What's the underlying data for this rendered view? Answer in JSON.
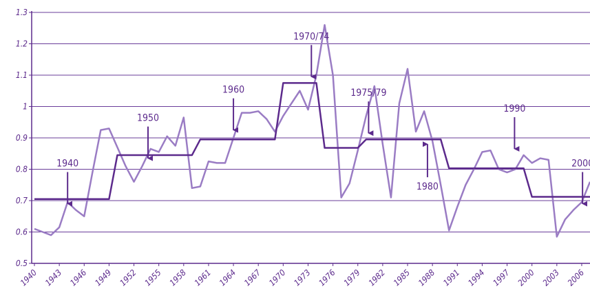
{
  "chart_data": {
    "type": "line",
    "x": [
      1940,
      1941,
      1942,
      1943,
      1944,
      1945,
      1946,
      1947,
      1948,
      1949,
      1950,
      1951,
      1952,
      1953,
      1954,
      1955,
      1956,
      1957,
      1958,
      1959,
      1960,
      1961,
      1962,
      1963,
      1964,
      1965,
      1966,
      1967,
      1968,
      1969,
      1970,
      1971,
      1972,
      1973,
      1974,
      1975,
      1976,
      1977,
      1978,
      1979,
      1980,
      1981,
      1982,
      1983,
      1984,
      1985,
      1986,
      1987,
      1988,
      1989,
      1990,
      1991,
      1992,
      1993,
      1994,
      1995,
      1996,
      1997,
      1998,
      1999,
      2000,
      2001,
      2002,
      2003,
      2004,
      2005,
      2006,
      2007
    ],
    "series": [
      {
        "color": "#9a7cc4",
        "values": [
          0.61,
          0.6,
          0.59,
          0.615,
          0.695,
          0.67,
          0.65,
          0.79,
          0.925,
          0.93,
          0.87,
          0.81,
          0.76,
          0.81,
          0.865,
          0.855,
          0.905,
          0.875,
          0.965,
          0.74,
          0.745,
          0.825,
          0.82,
          0.82,
          0.9,
          0.98,
          0.98,
          0.985,
          0.96,
          0.92,
          0.97,
          1.01,
          1.05,
          0.99,
          1.1,
          1.26,
          1.1,
          0.71,
          0.755,
          0.86,
          0.97,
          1.065,
          0.88,
          0.71,
          1.01,
          1.12,
          0.92,
          0.985,
          0.89,
          0.75,
          0.605,
          0.68,
          0.75,
          0.8,
          0.855,
          0.86,
          0.8,
          0.79,
          0.8,
          0.845,
          0.82,
          0.835,
          0.83,
          0.585,
          0.64,
          0.67,
          0.695,
          0.76
        ]
      },
      {
        "color": "#5c2a8c",
        "values": [
          0.705,
          0.705,
          0.705,
          0.705,
          0.705,
          0.705,
          0.705,
          0.705,
          0.705,
          0.705,
          0.845,
          0.845,
          0.845,
          0.845,
          0.845,
          0.845,
          0.845,
          0.845,
          0.845,
          0.845,
          0.895,
          0.895,
          0.895,
          0.895,
          0.895,
          0.895,
          0.895,
          0.895,
          0.895,
          0.895,
          1.075,
          1.075,
          1.075,
          1.075,
          1.075,
          0.868,
          0.868,
          0.868,
          0.868,
          0.868,
          0.895,
          0.895,
          0.895,
          0.895,
          0.895,
          0.895,
          0.895,
          0.895,
          0.895,
          0.895,
          0.803,
          0.803,
          0.803,
          0.803,
          0.803,
          0.803,
          0.803,
          0.803,
          0.803,
          0.803,
          0.712,
          0.712,
          0.712,
          0.712,
          0.712,
          0.712,
          0.712,
          0.712
        ]
      }
    ],
    "xlim": [
      1940,
      2007
    ],
    "xticks": [
      1940,
      1943,
      1946,
      1949,
      1952,
      1955,
      1958,
      1961,
      1964,
      1967,
      1970,
      1973,
      1976,
      1979,
      1982,
      1985,
      1988,
      1991,
      1994,
      1997,
      2000,
      2003,
      2006
    ],
    "ylim": [
      0.5,
      1.3
    ],
    "yticks": [
      0.5,
      0.6,
      0.7,
      0.8,
      0.9,
      1,
      1.1,
      1.2,
      1.3
    ],
    "grid": true,
    "annotations": [
      {
        "text": "1940",
        "x": 1944,
        "y": 0.69,
        "direction": "down"
      },
      {
        "text": "1950",
        "x": 1953.7,
        "y": 0.835,
        "direction": "down"
      },
      {
        "text": "1960",
        "x": 1964,
        "y": 0.925,
        "direction": "down"
      },
      {
        "text": "1970/74",
        "x": 1973.4,
        "y": 1.095,
        "direction": "down"
      },
      {
        "text": "1975/79",
        "x": 1980.3,
        "y": 0.915,
        "direction": "down"
      },
      {
        "text": "1980",
        "x": 1987.4,
        "y": 0.88,
        "direction": "up"
      },
      {
        "text": "1990",
        "x": 1997.9,
        "y": 0.865,
        "direction": "down"
      },
      {
        "text": "2000",
        "x": 2006.1,
        "y": 0.69,
        "direction": "down"
      }
    ]
  }
}
